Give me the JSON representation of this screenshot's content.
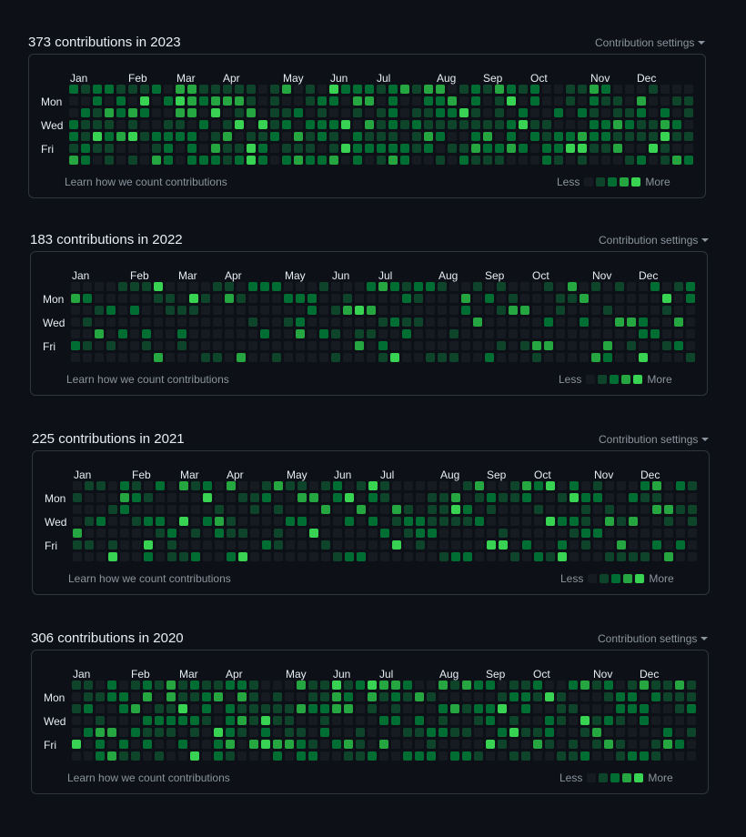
{
  "ui": {
    "settings_label": "Contribution settings",
    "learn_label": "Learn how we count contributions",
    "less_label": "Less",
    "more_label": "More",
    "day_labels": [
      "Mon",
      "Wed",
      "Fri"
    ],
    "colors": {
      "background": "#0d1117",
      "border": "#30363d",
      "level_0": "#161b22",
      "level_1": "#0e4429",
      "level_2": "#006d32",
      "level_3": "#26a641",
      "level_4": "#39d353"
    }
  },
  "sections": [
    {
      "title": "373 contributions in 2023",
      "months": [
        "Jan",
        "Feb",
        "Mar",
        "Apr",
        "May",
        "Jun",
        "Jul",
        "Aug",
        "Sep",
        "Oct",
        "Nov",
        "Dec"
      ],
      "active_days_per_week": [
        5,
        6,
        6,
        6,
        4,
        5,
        4,
        4,
        5,
        5,
        6,
        4,
        6,
        6,
        6,
        6,
        4,
        5,
        5,
        4,
        6,
        5,
        6,
        3,
        6,
        5,
        6,
        7,
        4,
        5,
        6,
        6,
        4,
        5,
        7,
        5,
        6,
        5,
        4,
        4,
        4,
        4,
        4,
        5,
        6,
        5,
        5,
        4,
        5,
        4,
        5,
        4,
        4
      ]
    },
    {
      "title": "183 contributions in 2022",
      "months": [
        "Jan",
        "Feb",
        "Mar",
        "Apr",
        "May",
        "Jun",
        "Jul",
        "Aug",
        "Sep",
        "Oct",
        "Nov",
        "Dec"
      ],
      "active_days_per_week": [
        2,
        3,
        2,
        2,
        2,
        2,
        3,
        3,
        2,
        3,
        2,
        2,
        2,
        2,
        2,
        2,
        2,
        2,
        2,
        3,
        2,
        2,
        3,
        2,
        3,
        3,
        4,
        3,
        4,
        3,
        2,
        2,
        2,
        2,
        2,
        2,
        3,
        2,
        2,
        2,
        3,
        2,
        2,
        2,
        2,
        3,
        2,
        2,
        3,
        2,
        3,
        3,
        3
      ]
    },
    {
      "title": "225 contributions in 2021",
      "months": [
        "Jan",
        "Feb",
        "Mar",
        "Apr",
        "May",
        "Jun",
        "Jul",
        "Aug",
        "Sep",
        "Oct",
        "Nov",
        "Dec"
      ],
      "active_days_per_week": [
        3,
        3,
        2,
        3,
        3,
        3,
        4,
        3,
        3,
        3,
        3,
        3,
        3,
        4,
        3,
        2,
        3,
        4,
        2,
        3,
        2,
        3,
        3,
        3,
        3,
        3,
        3,
        3,
        3,
        3,
        4,
        4,
        4,
        4,
        3,
        3,
        3,
        3,
        3,
        3,
        3,
        4,
        4,
        5,
        3,
        3,
        3,
        3,
        3,
        4,
        3,
        3,
        3
      ]
    },
    {
      "title": "306 contributions in 2020",
      "months": [
        "Jan",
        "Feb",
        "Mar",
        "Apr",
        "May",
        "Jun",
        "Jul",
        "Aug",
        "Sep",
        "Oct",
        "Nov",
        "Dec"
      ],
      "active_days_per_week": [
        3,
        4,
        5,
        4,
        4,
        4,
        5,
        5,
        5,
        5,
        5,
        4,
        5,
        6,
        5,
        5,
        4,
        5,
        4,
        5,
        5,
        5,
        4,
        5,
        4,
        4,
        4,
        4,
        4,
        4,
        4,
        4,
        4,
        4,
        4,
        4,
        4,
        5,
        5,
        4,
        4,
        4,
        4,
        4,
        4,
        4,
        5,
        4,
        4,
        4,
        4,
        4,
        4
      ]
    }
  ]
}
